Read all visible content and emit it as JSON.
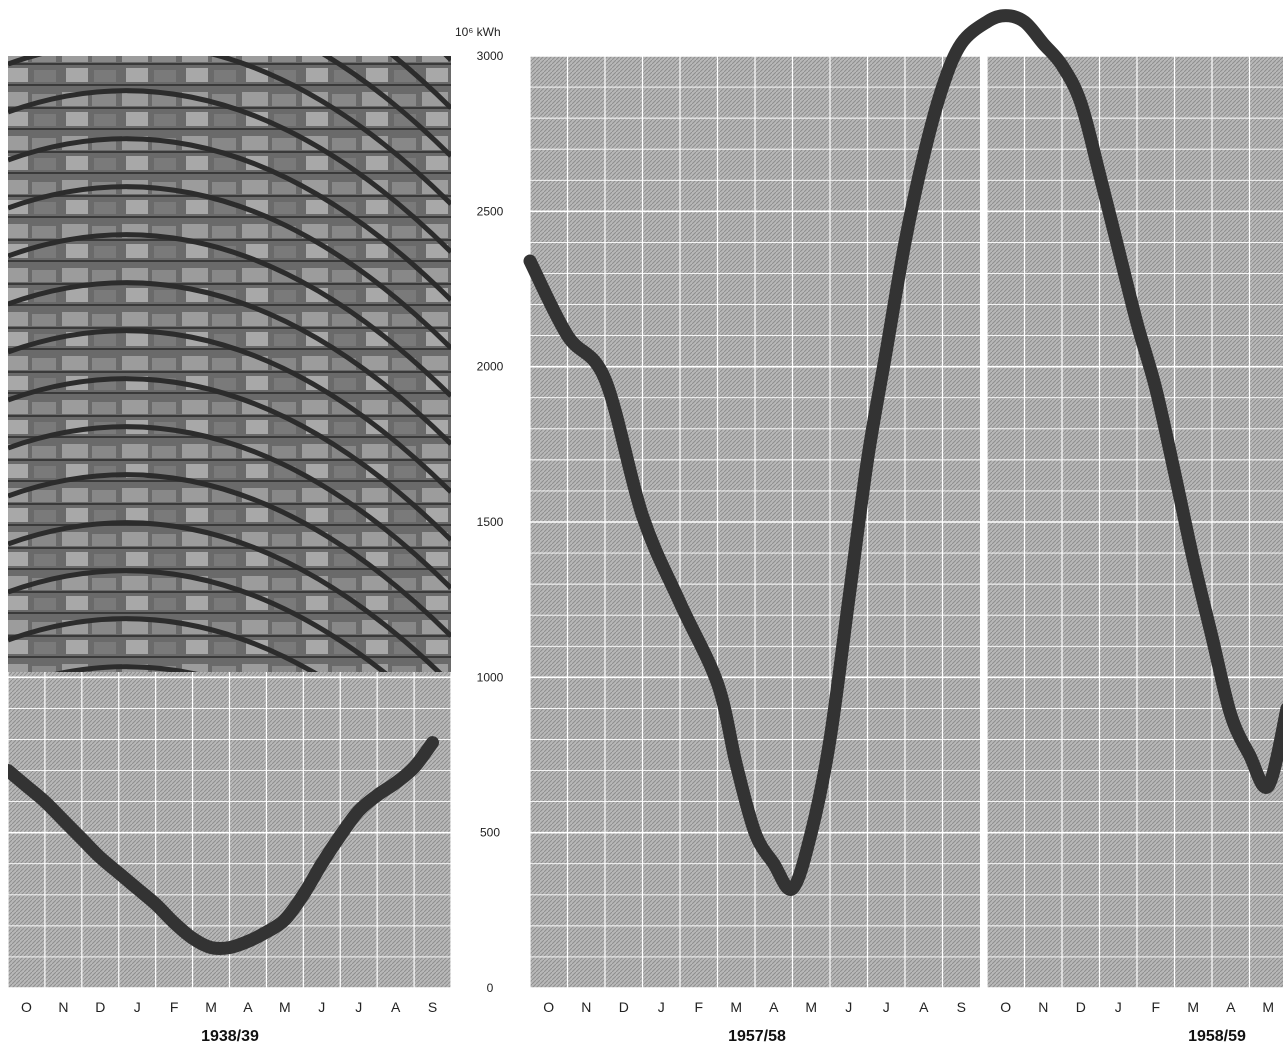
{
  "chart_data": [
    {
      "type": "line",
      "title": "",
      "ylabel": "10⁶ kWh",
      "ylim": [
        0,
        3000
      ],
      "yticks": [
        0,
        500,
        1000,
        1500,
        2000,
        2500,
        3000
      ],
      "grid": true,
      "photo_overlay": "dam-photo",
      "xlabel": "1938/39",
      "categories": [
        "O",
        "N",
        "D",
        "J",
        "F",
        "M",
        "A",
        "M",
        "J",
        "J",
        "A",
        "S"
      ],
      "x": [
        0,
        0.5,
        1,
        1.5,
        2,
        2.5,
        3,
        3.5,
        4,
        4.5,
        5,
        5.5,
        6,
        6.5,
        7,
        7.5,
        8,
        8.5,
        9,
        9.5,
        10,
        10.5,
        11,
        11.5
      ],
      "series": [
        {
          "values": [
            700,
            650,
            600,
            540,
            480,
            420,
            370,
            320,
            270,
            210,
            160,
            130,
            130,
            150,
            180,
            220,
            300,
            400,
            490,
            570,
            620,
            660,
            710,
            790
          ]
        }
      ]
    },
    {
      "type": "line",
      "title": "",
      "ylabel": "10⁶ kWh",
      "ylim": [
        0,
        3000
      ],
      "yticks": [
        0,
        500,
        1000,
        1500,
        2000,
        2500,
        3000
      ],
      "grid": true,
      "categories": [
        "O",
        "N",
        "D",
        "J",
        "F",
        "M",
        "A",
        "M",
        "J",
        "J",
        "A",
        "S",
        "O",
        "N",
        "D",
        "J",
        "F",
        "M",
        "A",
        "M"
      ],
      "seasons": [
        "1957/58",
        "1958/59"
      ],
      "x": [
        0,
        1,
        2,
        3,
        4,
        5,
        5.5,
        6,
        6.5,
        7,
        7.5,
        8,
        8.5,
        9,
        9.5,
        10,
        10.5,
        11,
        11.5,
        12,
        12.5,
        13,
        13.5,
        14,
        14.5,
        15,
        15.5,
        16,
        16.5,
        17,
        17.5,
        18,
        18.5,
        19,
        19.5,
        20
      ],
      "series": [
        {
          "values": [
            2340,
            2100,
            1960,
            1520,
            1240,
            980,
            720,
            500,
            400,
            320,
            500,
            800,
            1250,
            1700,
            2050,
            2400,
            2680,
            2900,
            3040,
            3110,
            3130,
            3110,
            3040,
            2970,
            2850,
            2620,
            2380,
            2140,
            1930,
            1660,
            1380,
            1130,
            880,
            750,
            650,
            900
          ]
        }
      ]
    }
  ]
}
